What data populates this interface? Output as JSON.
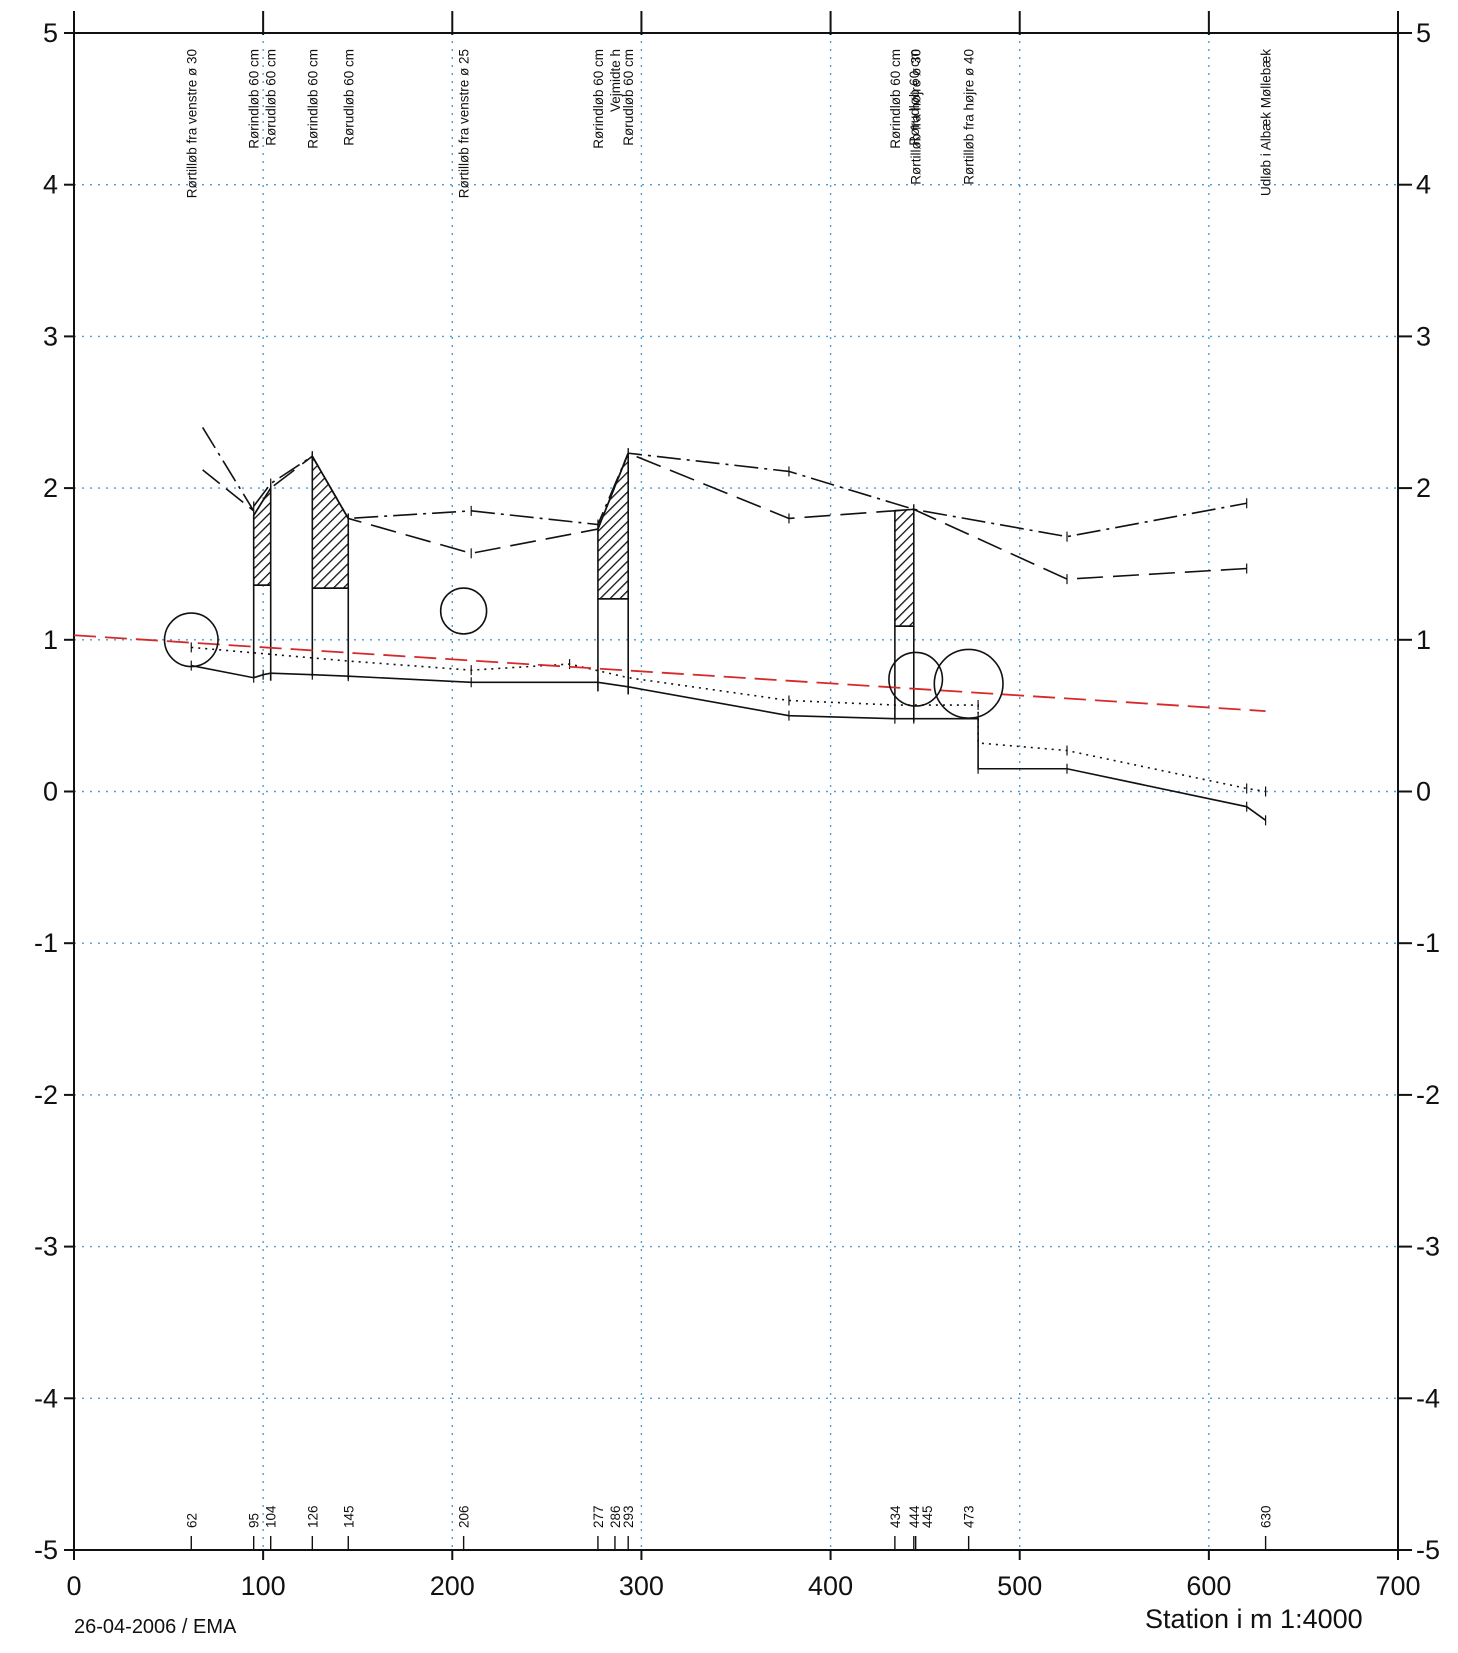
{
  "chart_data": {
    "type": "line",
    "title": "",
    "xlabel": "Station i m  1:4000",
    "ylabel": "",
    "xlim": [
      0,
      700
    ],
    "ylim": [
      -5,
      5
    ],
    "x_ticks": [
      "0",
      "100",
      "200",
      "300",
      "400",
      "500",
      "600",
      "700"
    ],
    "y_ticks": [
      "5",
      "4",
      "3",
      "2",
      "1",
      "0",
      "-1",
      "-2",
      "-3",
      "-4",
      "-5"
    ],
    "grid": true,
    "scale_x_per_mm": 4000,
    "structure_labels": [
      {
        "station": 62,
        "text": "Rørtilløb fra venstre ø 30"
      },
      {
        "station": 95,
        "text": "Rørindløb 60 cm"
      },
      {
        "station": 104,
        "text": "Rørudløb 60 cm"
      },
      {
        "station": 126,
        "text": "Rørindløb 60 cm"
      },
      {
        "station": 145,
        "text": "Rørudløb 60 cm"
      },
      {
        "station": 206,
        "text": "Rørtilløb fra venstre ø 25"
      },
      {
        "station": 277,
        "text": "Rørindløb 60 cm"
      },
      {
        "station": 286,
        "text": "Vejmidte h"
      },
      {
        "station": 293,
        "text": "Rørudløb 60 cm"
      },
      {
        "station": 434,
        "text": "Rørindløb 60 cm"
      },
      {
        "station": 444,
        "text": "Rørudløb 60 cm"
      },
      {
        "station": 445,
        "text": "Rørtilløb fra højre ø 30"
      },
      {
        "station": 473,
        "text": "Rørtilløb fra højre ø 40"
      },
      {
        "station": 630,
        "text": "Udløb i Albæk Møllebæk"
      }
    ],
    "station_marks": [
      "62",
      "95",
      "104",
      "126",
      "145",
      "206",
      "277",
      "286",
      "293",
      "434",
      "444",
      "445",
      "473",
      "630"
    ],
    "series": [
      {
        "style": "solid",
        "x": [
          62,
          95,
          100,
          104,
          126,
          145,
          210,
          277,
          293,
          378,
          434,
          444,
          478,
          478,
          525,
          620,
          630
        ],
        "y": [
          0.83,
          0.75,
          0.77,
          0.78,
          0.77,
          0.76,
          0.72,
          0.72,
          0.69,
          0.5,
          0.48,
          0.48,
          0.48,
          0.15,
          0.15,
          -0.1,
          -0.19
        ]
      },
      {
        "style": "dotted",
        "x": [
          62,
          145,
          210,
          262,
          293,
          378,
          434,
          478,
          478,
          525,
          620,
          630
        ],
        "y": [
          0.95,
          0.86,
          0.8,
          0.84,
          0.75,
          0.6,
          0.57,
          0.57,
          0.32,
          0.27,
          0.02,
          0.0
        ]
      },
      {
        "style": "dashed",
        "x": [
          95,
          104,
          126,
          145,
          210,
          277,
          293,
          378,
          444,
          525,
          620
        ],
        "y": [
          1.82,
          2.0,
          2.21,
          1.8,
          1.57,
          1.73,
          2.23,
          1.8,
          1.86,
          1.4,
          1.47
        ]
      },
      {
        "style": "dashdot",
        "x": [
          95,
          104,
          126,
          145,
          210,
          277,
          293,
          378,
          444,
          525,
          620
        ],
        "y": [
          1.88,
          2.03,
          2.21,
          1.8,
          1.85,
          1.76,
          2.23,
          2.11,
          1.86,
          1.68,
          1.9
        ]
      },
      {
        "style": "dashdot-left",
        "x": [
          68,
          95
        ],
        "y": [
          2.4,
          1.85
        ]
      },
      {
        "style": "dashed-left",
        "x": [
          68,
          95
        ],
        "y": [
          2.12,
          1.85
        ]
      },
      {
        "style": "red-dashed",
        "color": "#d42a2a",
        "x": [
          0,
          630
        ],
        "y": [
          1.03,
          0.53
        ]
      }
    ],
    "culverts": [
      {
        "x_in": 95,
        "x_out": 104,
        "hatch_bottom": 1.36,
        "bottom": 0.75
      },
      {
        "x_in": 126,
        "x_out": 145,
        "hatch_bottom": 1.34,
        "bottom": 0.76
      },
      {
        "x_in": 277,
        "x_out": 293,
        "hatch_bottom": 1.27,
        "bottom": 0.66
      },
      {
        "x_in": 434,
        "x_out": 444,
        "hatch_bottom": 1.09,
        "bottom": 0.48
      }
    ],
    "pipe_circles": [
      {
        "station": 62,
        "y": 1.0,
        "diameter_m": 0.3
      },
      {
        "station": 206,
        "y": 1.19,
        "diameter_m": 0.25
      },
      {
        "station": 445,
        "y": 0.74,
        "diameter_m": 0.3
      },
      {
        "station": 473,
        "y": 0.71,
        "diameter_m": 0.4
      }
    ],
    "colors": {
      "axis": "#111111",
      "grid": "#4a9fd6",
      "red_line": "#d42a2a"
    }
  },
  "footer": {
    "date": "26-04-2006 / EMA",
    "station_label": "Station i m  1:4000"
  }
}
